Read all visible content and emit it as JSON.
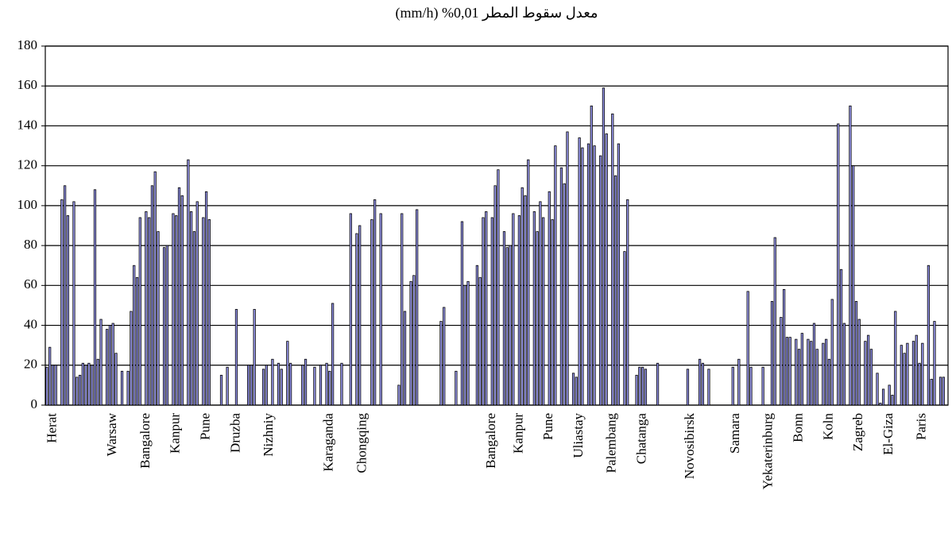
{
  "chart_data": {
    "type": "bar",
    "title": "معدل سقوط المطر 0,01% (mm/h)",
    "color": "#9999ee",
    "grid": true,
    "ylim": [
      0,
      180
    ],
    "yticks": [
      0,
      20,
      40,
      60,
      80,
      100,
      120,
      140,
      160,
      180
    ],
    "categories": [
      null,
      null,
      "Herat",
      null,
      null,
      null,
      null,
      null,
      null,
      null,
      null,
      null,
      null,
      null,
      null,
      null,
      null,
      null,
      null,
      null,
      null,
      null,
      "Warsaw",
      null,
      null,
      null,
      null,
      null,
      null,
      null,
      null,
      null,
      null,
      "Bangalore",
      null,
      null,
      null,
      null,
      null,
      null,
      null,
      null,
      null,
      "Kanpur",
      null,
      null,
      null,
      null,
      null,
      null,
      null,
      null,
      null,
      "Pune",
      null,
      null,
      null,
      null,
      null,
      null,
      null,
      null,
      null,
      "Druzba",
      null,
      null,
      null,
      null,
      null,
      null,
      null,
      null,
      null,
      null,
      "Nizhniy",
      null,
      null,
      null,
      null,
      null,
      null,
      null,
      null,
      null,
      null,
      null,
      null,
      null,
      null,
      null,
      null,
      null,
      null,
      null,
      "Karaganda",
      null,
      null,
      null,
      null,
      null,
      null,
      null,
      null,
      null,
      null,
      "Chongqing",
      null,
      null,
      null,
      null,
      null,
      null,
      null,
      null,
      null,
      null,
      null,
      null,
      null,
      null,
      null,
      null,
      null,
      null,
      null,
      null,
      null,
      null,
      null,
      null,
      null,
      null,
      null,
      null,
      null,
      null,
      null,
      null,
      null,
      null,
      null,
      null,
      null,
      null,
      null,
      null,
      null,
      null,
      "Bangalore",
      null,
      null,
      null,
      null,
      null,
      null,
      null,
      null,
      "Kanpur",
      null,
      null,
      null,
      null,
      null,
      null,
      null,
      null,
      null,
      "Pune",
      null,
      null,
      null,
      null,
      null,
      null,
      null,
      null,
      null,
      "Uliastay",
      null,
      null,
      null,
      null,
      null,
      null,
      null,
      null,
      null,
      null,
      "Palembang",
      null,
      null,
      null,
      null,
      null,
      null,
      null,
      null,
      null,
      "Chatanga",
      null,
      null,
      null,
      null,
      null,
      null,
      null,
      null,
      null,
      null,
      null,
      null,
      null,
      null,
      null,
      "Novosibirsk",
      null,
      null,
      null,
      null,
      null,
      null,
      null,
      null,
      null,
      null,
      null,
      null,
      null,
      null,
      "Samara",
      null,
      null,
      null,
      null,
      null,
      null,
      null,
      null,
      null,
      null,
      "Yekaterinburg",
      null,
      null,
      null,
      null,
      null,
      null,
      null,
      null,
      null,
      "Bonn",
      null,
      null,
      null,
      null,
      null,
      null,
      null,
      null,
      null,
      "Koln",
      null,
      null,
      null,
      null,
      null,
      null,
      null,
      null,
      null,
      "Zagreb",
      null,
      null,
      null,
      null,
      null,
      null,
      null,
      null,
      null,
      "El-Giza",
      null,
      null,
      null,
      null,
      null,
      null,
      null,
      null,
      null,
      null,
      "Paris",
      null,
      null,
      null,
      null,
      null,
      null,
      null,
      null
    ],
    "values": [
      19,
      29,
      20,
      20,
      0,
      103,
      110,
      95,
      0,
      102,
      14,
      15,
      21,
      20,
      21,
      20,
      108,
      23,
      43,
      0,
      38,
      40,
      41,
      26,
      0,
      17,
      0,
      17,
      47,
      70,
      64,
      94,
      0,
      97,
      94,
      110,
      117,
      87,
      0,
      79,
      80,
      0,
      96,
      95,
      109,
      105,
      0,
      123,
      97,
      87,
      102,
      0,
      94,
      107,
      93,
      0,
      0,
      0,
      15,
      0,
      19,
      0,
      0,
      48,
      0,
      0,
      0,
      20,
      20,
      48,
      0,
      0,
      18,
      20,
      0,
      23,
      0,
      21,
      18,
      0,
      32,
      21,
      0,
      0,
      0,
      20,
      23,
      0,
      0,
      19,
      0,
      20,
      0,
      21,
      17,
      51,
      0,
      0,
      21,
      0,
      0,
      96,
      0,
      86,
      90,
      0,
      0,
      0,
      93,
      103,
      0,
      96,
      0,
      0,
      0,
      0,
      0,
      10,
      96,
      47,
      0,
      62,
      65,
      98,
      0,
      0,
      0,
      0,
      0,
      0,
      0,
      42,
      49,
      0,
      0,
      0,
      17,
      0,
      92,
      60,
      62,
      0,
      0,
      70,
      64,
      94,
      97,
      0,
      94,
      110,
      118,
      0,
      87,
      79,
      80,
      96,
      0,
      95,
      109,
      105,
      123,
      0,
      97,
      87,
      102,
      94,
      0,
      107,
      93,
      130,
      0,
      119,
      111,
      137,
      0,
      16,
      14,
      134,
      129,
      0,
      131,
      150,
      130,
      0,
      125,
      159,
      136,
      0,
      146,
      115,
      131,
      0,
      77,
      103,
      0,
      0,
      15,
      19,
      19,
      18,
      0,
      0,
      0,
      21,
      0,
      0,
      0,
      0,
      0,
      0,
      0,
      0,
      0,
      18,
      0,
      0,
      0,
      23,
      21,
      0,
      18,
      0,
      0,
      0,
      0,
      0,
      0,
      0,
      19,
      0,
      23,
      0,
      0,
      57,
      19,
      0,
      0,
      0,
      19,
      0,
      0,
      52,
      84,
      0,
      44,
      58,
      34,
      34,
      0,
      33,
      28,
      36,
      0,
      33,
      32,
      41,
      28,
      0,
      31,
      33,
      23,
      53,
      0,
      141,
      68,
      41,
      0,
      150,
      120,
      52,
      43,
      0,
      32,
      35,
      28,
      0,
      16,
      1,
      8,
      0,
      10,
      5,
      47,
      0,
      30,
      26,
      31,
      0,
      32,
      35,
      21,
      31,
      0,
      70,
      13,
      42,
      0,
      14,
      14,
      0
    ]
  }
}
